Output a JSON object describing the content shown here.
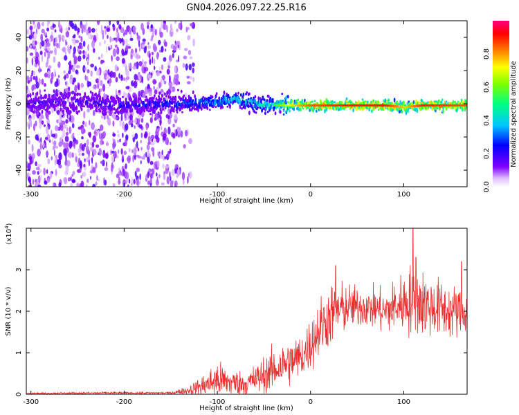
{
  "chart_data": [
    {
      "type": "heatmap",
      "title": "GN04.2026.097.22.25.R16",
      "xlabel": "Height of straight line (km)",
      "ylabel": "Frequency (Hz)",
      "xlim": [
        -305,
        168
      ],
      "ylim": [
        -50,
        50
      ],
      "xticks": [
        -300,
        -200,
        -100,
        0,
        100
      ],
      "xtick_labels": [
        "-300",
        "-200",
        "-100",
        "0",
        "100"
      ],
      "yticks": [
        -40,
        -20,
        0,
        20,
        40
      ],
      "ytick_labels": [
        "-40",
        "-20",
        "0",
        "20",
        "40"
      ],
      "colorbar": {
        "label": "Normalized spectral amplitude",
        "range": [
          0,
          1
        ],
        "ticks": [
          0.0,
          0.2,
          0.4,
          0.6,
          0.8
        ],
        "tick_labels": [
          "0.0",
          "0.2",
          "0.4",
          "0.6",
          "0.8"
        ],
        "colormap": [
          "#ffffff",
          "#e0c0ff",
          "#8000ff",
          "#0000ff",
          "#00c8ff",
          "#00ff80",
          "#80ff00",
          "#ffff00",
          "#ff8000",
          "#ff0000",
          "#ff0080"
        ]
      },
      "ridge": {
        "description_points_x": [
          -305,
          -250,
          -200,
          -150,
          -120,
          -100,
          -80,
          -60,
          -40,
          -20,
          0,
          40,
          80,
          100,
          120,
          168
        ],
        "center_freq": [
          0,
          1,
          -1,
          0,
          1,
          1,
          3,
          0,
          -1,
          -1,
          -1,
          -1,
          -1,
          -2,
          -1,
          -1
        ],
        "amplitude": [
          0.25,
          0.25,
          0.3,
          0.35,
          0.4,
          0.45,
          0.5,
          0.5,
          0.55,
          0.75,
          0.85,
          0.9,
          0.9,
          0.75,
          0.9,
          0.85
        ],
        "noise_extent_x": [
          -305,
          -140
        ]
      }
    },
    {
      "type": "line",
      "xlabel": "Height of straight line (km)",
      "ylabel": "SNR (10 * v/v)",
      "y_multiplier_label": "(x10",
      "y_multiplier_exp": "4",
      "y_multiplier_close": ")",
      "xlim": [
        -305,
        168
      ],
      "ylim": [
        0,
        4
      ],
      "xticks": [
        -300,
        -200,
        -100,
        0,
        100
      ],
      "xtick_labels": [
        "-300",
        "-200",
        "-100",
        "0",
        "100"
      ],
      "yticks": [
        0,
        1,
        2,
        3
      ],
      "ytick_labels": [
        "0",
        "1",
        "2",
        "3"
      ],
      "color": "#e83030",
      "envelope_x": [
        -305,
        -220,
        -150,
        -130,
        -110,
        -100,
        -90,
        -70,
        -50,
        -30,
        -10,
        0,
        10,
        25,
        40,
        60,
        80,
        100,
        110,
        130,
        150,
        168
      ],
      "envelope_mean": [
        0.02,
        0.03,
        0.03,
        0.1,
        0.25,
        0.35,
        0.3,
        0.25,
        0.45,
        0.7,
        0.9,
        1.2,
        1.6,
        2.0,
        2.1,
        2.1,
        2.0,
        2.2,
        2.3,
        2.1,
        2.0,
        2.0
      ],
      "envelope_spread": [
        0.02,
        0.03,
        0.03,
        0.12,
        0.35,
        0.5,
        0.4,
        0.3,
        0.5,
        0.6,
        0.6,
        0.7,
        0.8,
        0.8,
        0.6,
        0.5,
        0.6,
        0.8,
        1.0,
        0.8,
        0.7,
        0.6
      ],
      "peaks": [
        {
          "x": 27,
          "y": 3.1
        },
        {
          "x": 110,
          "y": 4.0
        },
        {
          "x": 113,
          "y": 3.3
        },
        {
          "x": 162,
          "y": 3.2
        }
      ]
    }
  ]
}
